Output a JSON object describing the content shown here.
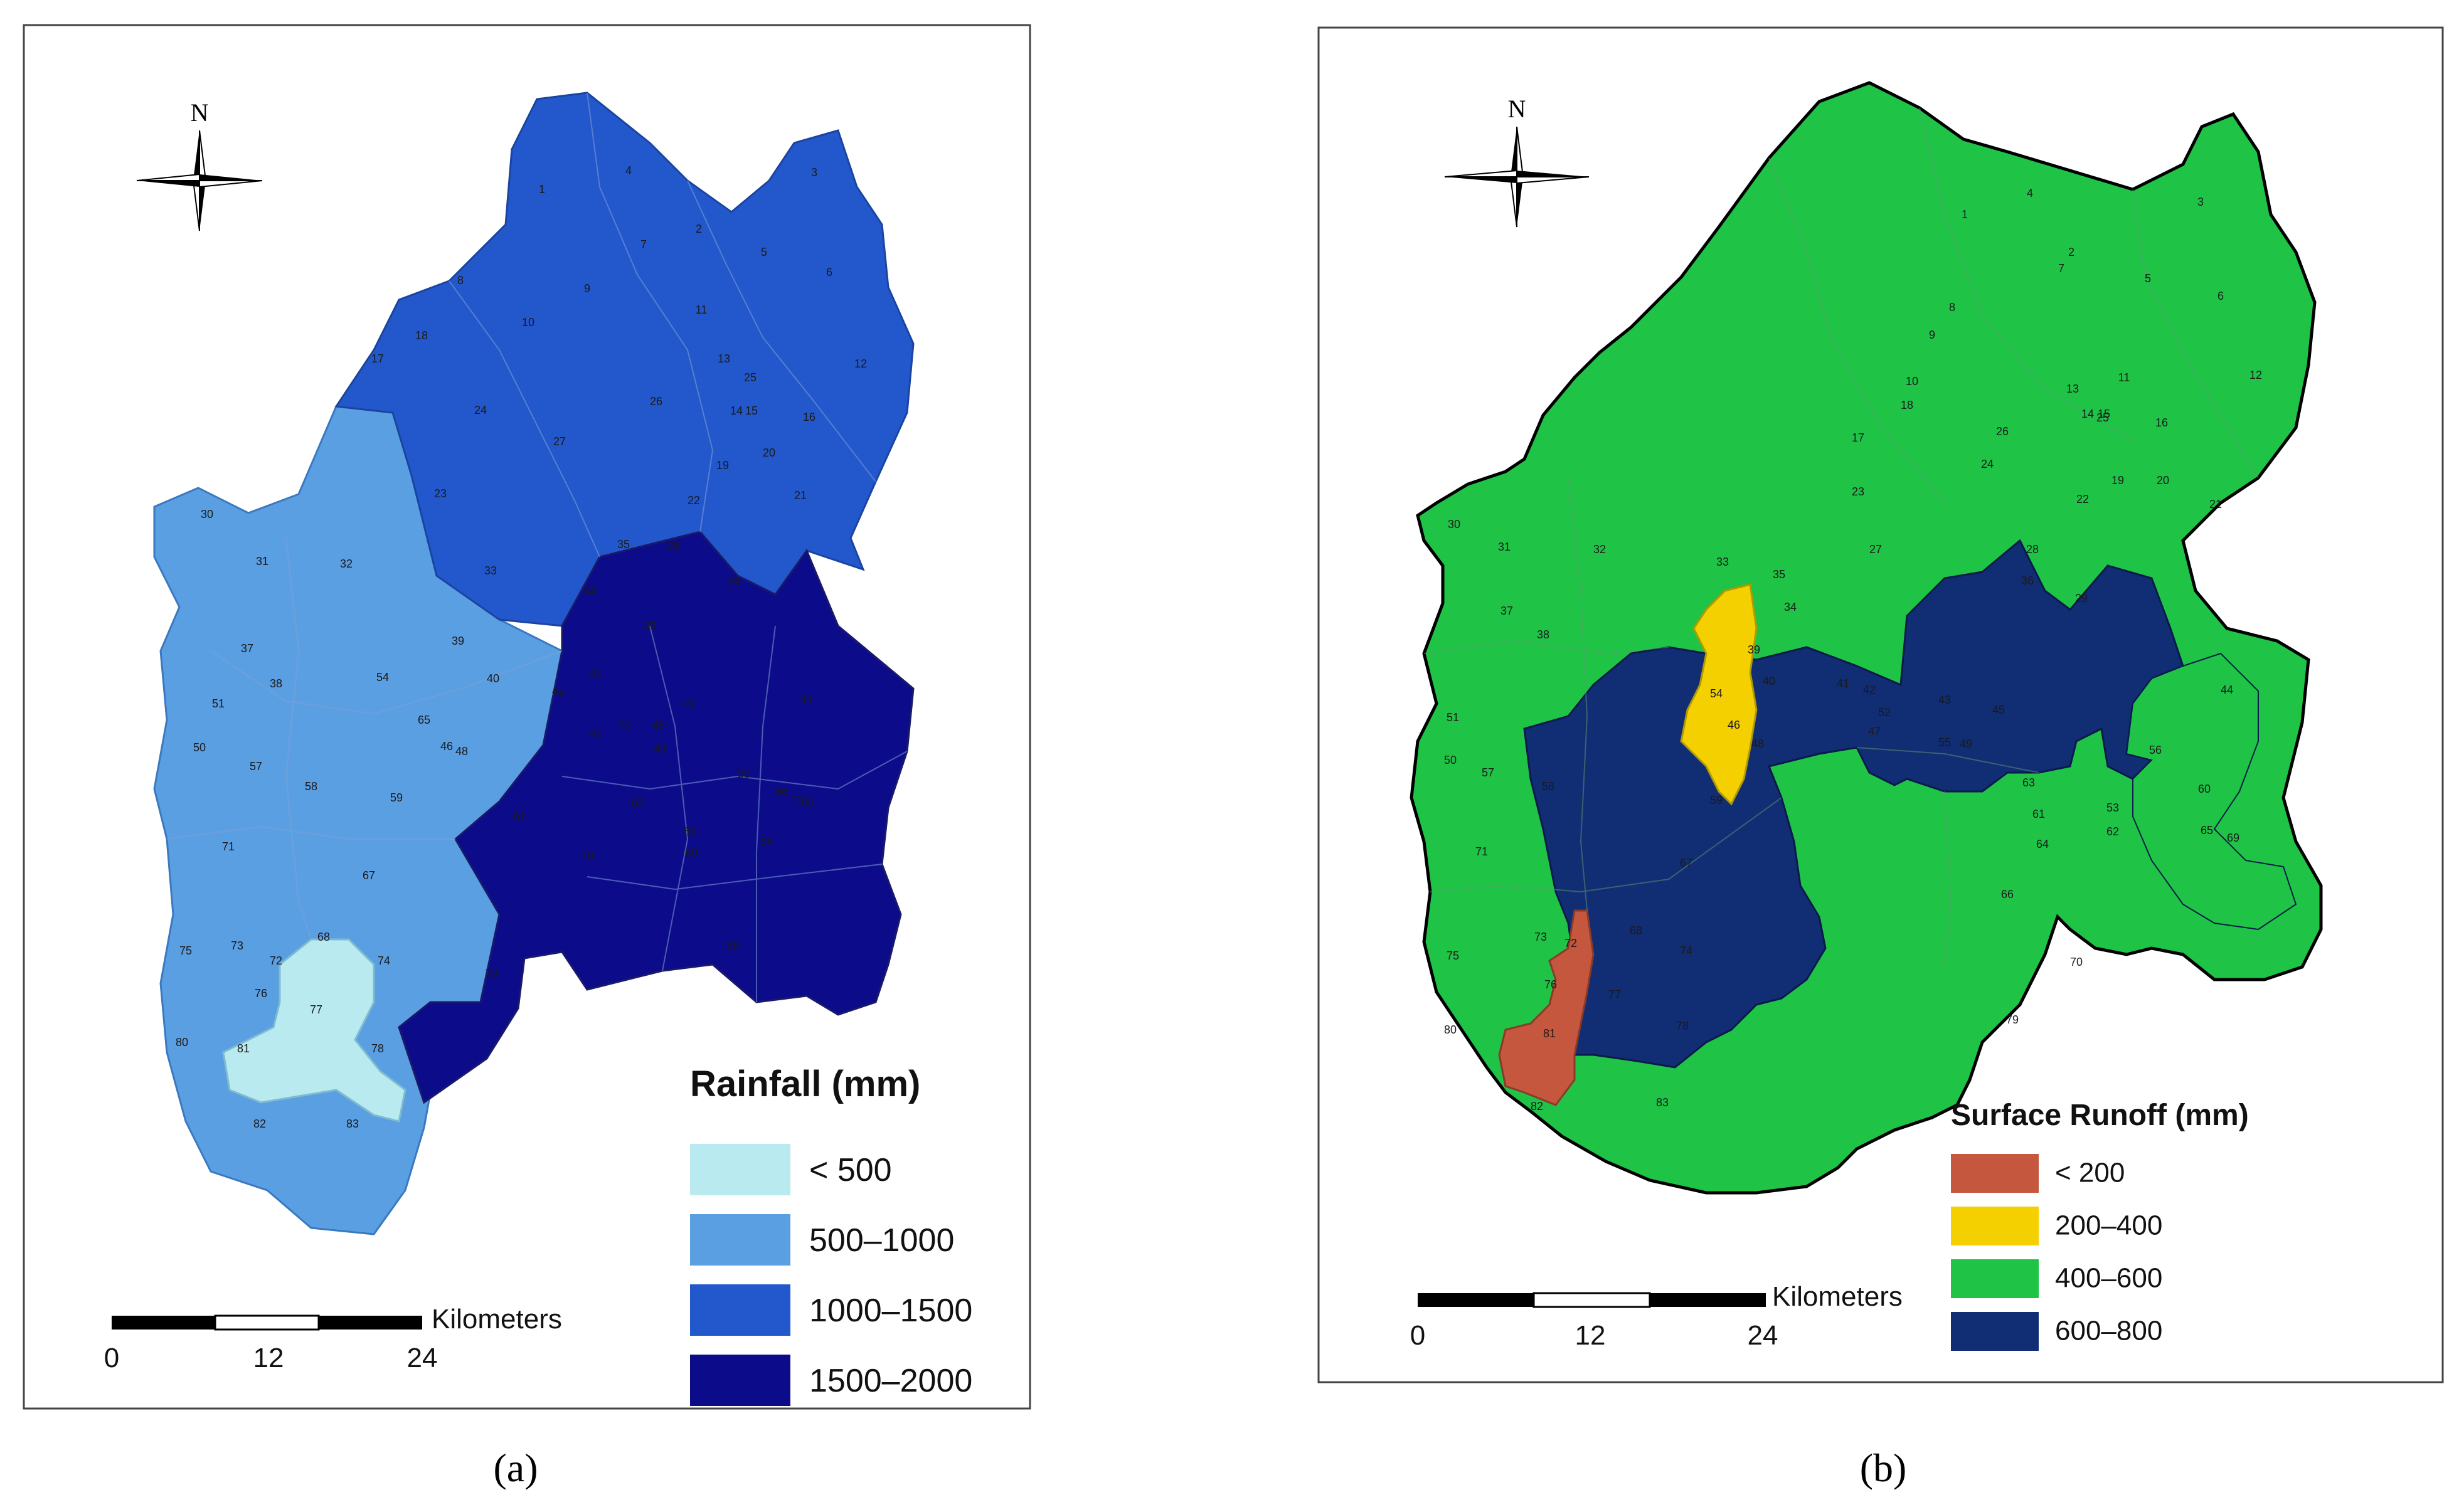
{
  "panels": [
    {
      "caption": "(a)",
      "legend_title": "Rainfall (mm)",
      "legend": [
        {
          "label": "< 500",
          "color": "#b8eaf0"
        },
        {
          "label": "500–1000",
          "color": "#5b9fe3"
        },
        {
          "label": "1000–1500",
          "color": "#2358cc"
        },
        {
          "label": "1500–2000",
          "color": "#0c0c8a"
        }
      ],
      "north_label": "N",
      "scale": {
        "unit": "Kilometers",
        "ticks": [
          "0",
          "12",
          "24"
        ]
      }
    },
    {
      "caption": "(b)",
      "legend_title": "Surface Runoff (mm)",
      "legend": [
        {
          "label": "< 200",
          "color": "#c4573e"
        },
        {
          "label": "200–400",
          "color": "#f5d000"
        },
        {
          "label": "400–600",
          "color": "#1fc447"
        },
        {
          "label": "600–800",
          "color": "#112d74"
        }
      ],
      "north_label": "N",
      "scale": {
        "unit": "Kilometers",
        "ticks": [
          "0",
          "12",
          "24"
        ]
      }
    }
  ],
  "subbasin_labels": [
    "1",
    "2",
    "3",
    "4",
    "5",
    "6",
    "7",
    "8",
    "9",
    "10",
    "11",
    "12",
    "13",
    "14",
    "15",
    "16",
    "17",
    "18",
    "19",
    "20",
    "21",
    "22",
    "23",
    "24",
    "25",
    "26",
    "27",
    "28",
    "29",
    "30",
    "31",
    "32",
    "33",
    "34",
    "35",
    "36",
    "37",
    "38",
    "39",
    "40",
    "41",
    "42",
    "43",
    "44",
    "45",
    "46",
    "47",
    "48",
    "49",
    "50",
    "51",
    "52",
    "53",
    "54",
    "55",
    "56",
    "57",
    "58",
    "59",
    "60",
    "61",
    "62",
    "63",
    "64",
    "65",
    "66",
    "67",
    "68",
    "69",
    "70",
    "71",
    "72",
    "73",
    "74",
    "75",
    "76",
    "77",
    "78",
    "79",
    "80",
    "81",
    "82",
    "83"
  ]
}
